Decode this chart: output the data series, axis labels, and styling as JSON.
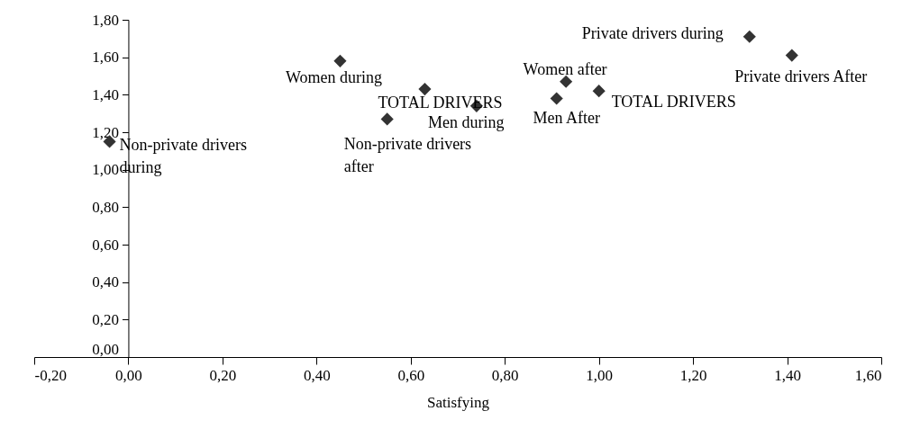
{
  "chart_data": {
    "type": "scatter",
    "xlabel": "Satisfying",
    "x": [
      -0.04,
      0.45,
      0.63,
      0.55,
      0.74,
      0.93,
      0.91,
      1.0,
      1.32,
      1.41
    ],
    "series": [
      {
        "color": "#333333",
        "values": [
          1.15,
          1.58,
          1.43,
          1.27,
          1.34,
          1.47,
          1.38,
          1.42,
          1.71,
          1.61
        ]
      }
    ],
    "annotations": [
      {
        "text": "Non-private drivers\nduring",
        "x": -0.04,
        "y": 1.15
      },
      {
        "text": "Women during",
        "x": 0.45,
        "y": 1.58
      },
      {
        "text": "TOTAL DRIVERS",
        "x": 0.63,
        "y": 1.43
      },
      {
        "text": "Non-private drivers\nafter",
        "x": 0.55,
        "y": 1.27
      },
      {
        "text": "Men during",
        "x": 0.74,
        "y": 1.34
      },
      {
        "text": "Women after",
        "x": 0.93,
        "y": 1.47
      },
      {
        "text": "Men After",
        "x": 0.91,
        "y": 1.38
      },
      {
        "text": "TOTAL DRIVERS",
        "x": 1.0,
        "y": 1.42
      },
      {
        "text": "Private drivers during",
        "x": 1.32,
        "y": 1.71
      },
      {
        "text": "Private drivers After",
        "x": 1.41,
        "y": 1.61
      }
    ],
    "xlim": [
      -0.2,
      1.6
    ],
    "xticks": [
      {
        "value": -0.2,
        "label": "-0,20"
      },
      {
        "value": 0,
        "label": "0,00"
      },
      {
        "value": 0.2,
        "label": "0,20"
      },
      {
        "value": 0.4,
        "label": "0,40"
      },
      {
        "value": 0.6,
        "label": "0,60"
      },
      {
        "value": 0.8,
        "label": "0,80"
      },
      {
        "value": 1.0,
        "label": "1,00"
      },
      {
        "value": 1.2,
        "label": "1,20"
      },
      {
        "value": 1.4,
        "label": "1,40"
      },
      {
        "value": 1.6,
        "label": "1,60"
      }
    ],
    "ylim": [
      0,
      1.8
    ],
    "yticks": [
      {
        "value": 0,
        "label": "0,00"
      },
      {
        "value": 0.2,
        "label": "0,20"
      },
      {
        "value": 0.4,
        "label": "0,40"
      },
      {
        "value": 0.6,
        "label": "0,60"
      },
      {
        "value": 0.8,
        "label": "0,80"
      },
      {
        "value": 1.0,
        "label": "1,00"
      },
      {
        "value": 1.2,
        "label": "1,20"
      },
      {
        "value": 1.4,
        "label": "1,40"
      },
      {
        "value": 1.6,
        "label": "1,60"
      },
      {
        "value": 1.8,
        "label": "1,80"
      }
    ],
    "marker": "diamond",
    "grid": false
  }
}
